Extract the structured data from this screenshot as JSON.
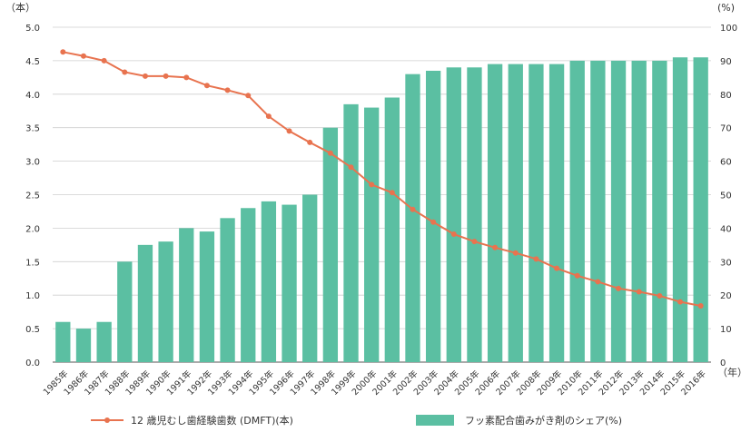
{
  "chart_data": {
    "type": "bar+line",
    "categories": [
      "1985年",
      "1986年",
      "1987年",
      "1988年",
      "1989年",
      "1990年",
      "1991年",
      "1992年",
      "1993年",
      "1994年",
      "1995年",
      "1996年",
      "1997年",
      "1998年",
      "1999年",
      "2000年",
      "2001年",
      "2002年",
      "2003年",
      "2004年",
      "2005年",
      "2006年",
      "2007年",
      "2008年",
      "2009年",
      "2010年",
      "2011年",
      "2012年",
      "2013年",
      "2014年",
      "2015年",
      "2016年"
    ],
    "left_axis_unit": "（本）",
    "right_axis_unit": "(%)",
    "x_axis_unit": "（年）",
    "y_left_ticks": [
      "0.0",
      "0.5",
      "1.0",
      "1.5",
      "2.0",
      "2.5",
      "3.0",
      "3.5",
      "4.0",
      "4.5",
      "5.0"
    ],
    "y_right_ticks": [
      "0",
      "10",
      "20",
      "30",
      "40",
      "50",
      "60",
      "70",
      "80",
      "90",
      "100"
    ],
    "y_left_lim": [
      0,
      5
    ],
    "y_right_lim": [
      0,
      100
    ],
    "grid": true,
    "legend_position": "bottom",
    "series": [
      {
        "name": "12 歳児むし歯経験歯数 (DMFT)(本)",
        "type": "line",
        "axis": "left",
        "color": "#e8734f",
        "values": [
          4.63,
          4.57,
          4.5,
          4.33,
          4.27,
          4.27,
          4.25,
          4.13,
          4.06,
          3.98,
          3.67,
          3.45,
          3.28,
          3.12,
          2.91,
          2.65,
          2.53,
          2.28,
          2.09,
          1.91,
          1.8,
          1.71,
          1.63,
          1.54,
          1.4,
          1.29,
          1.2,
          1.1,
          1.05,
          0.99,
          0.9,
          0.84
        ]
      },
      {
        "name": "フッ素配合歯みがき剤のシェア(%)",
        "type": "bar",
        "axis": "right",
        "color": "#5bbfa2",
        "values": [
          12,
          10,
          12,
          30,
          35,
          36,
          40,
          39,
          43,
          46,
          48,
          47,
          50,
          70,
          77,
          76,
          79,
          86,
          87,
          88,
          88,
          89,
          89,
          89,
          89,
          90,
          90,
          90,
          90,
          90,
          91,
          91
        ]
      }
    ]
  }
}
